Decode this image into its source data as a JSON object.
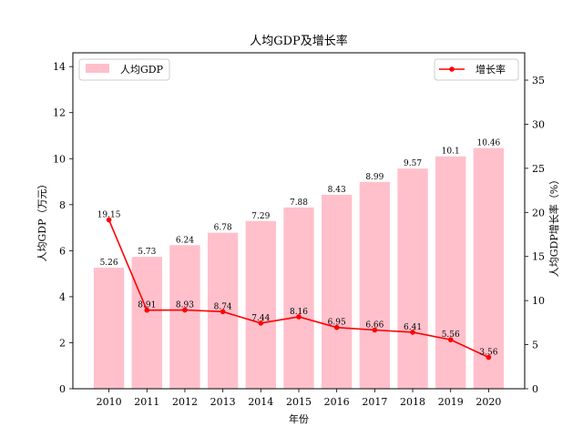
{
  "chart_data": {
    "type": "bar+line",
    "title": "人均GDP及增长率",
    "xlabel": "年份",
    "ylabel_left": "人均GDP（万元）",
    "ylabel_right": "人均GDP增长率（%）",
    "categories": [
      "2010",
      "2011",
      "2012",
      "2013",
      "2014",
      "2015",
      "2016",
      "2017",
      "2018",
      "2019",
      "2020"
    ],
    "series": [
      {
        "name": "人均GDP",
        "kind": "bar",
        "axis": "left",
        "color": "#ffc0cb",
        "values": [
          5.26,
          5.73,
          6.24,
          6.78,
          7.29,
          7.88,
          8.43,
          8.99,
          9.57,
          10.1,
          10.46
        ],
        "labels": [
          "5.26",
          "5.73",
          "6.24",
          "6.78",
          "7.29",
          "7.88",
          "8.43",
          "8.99",
          "9.57",
          "10.1",
          "10.46"
        ]
      },
      {
        "name": "增长率",
        "kind": "line",
        "axis": "right",
        "color": "#ff0000",
        "values": [
          19.15,
          8.91,
          8.93,
          8.74,
          7.44,
          8.16,
          6.95,
          6.66,
          6.41,
          5.56,
          3.56
        ],
        "labels": [
          "19.15",
          "8.91",
          "8.93",
          "8.74",
          "7.44",
          "8.16",
          "6.95",
          "6.66",
          "6.41",
          "5.56",
          "3.56"
        ]
      }
    ],
    "ylim_left": [
      0,
      14.6
    ],
    "yticks_left": [
      "0",
      "2",
      "4",
      "6",
      "8",
      "10",
      "12",
      "14"
    ],
    "ylim_right": [
      0,
      38.1
    ],
    "yticks_right": [
      "0",
      "5",
      "10",
      "15",
      "20",
      "25",
      "30",
      "35"
    ],
    "legend_left_position": "upper-left",
    "legend_right_position": "upper-right",
    "grid": false
  }
}
